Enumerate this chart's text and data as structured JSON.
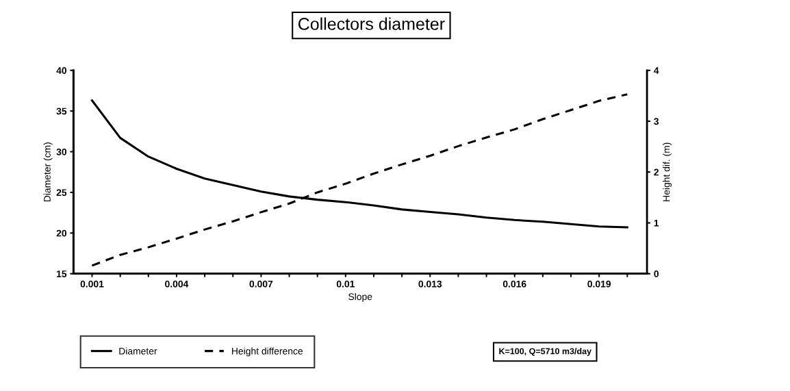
{
  "chart_data": {
    "type": "line",
    "title": "Collectors diameter",
    "xlabel": "Slope",
    "ylabel": "Diameter (cm)",
    "y2label": "Height dif. (m)",
    "x": [
      0.001,
      0.002,
      0.003,
      0.004,
      0.005,
      0.006,
      0.007,
      0.008,
      0.009,
      0.01,
      0.011,
      0.012,
      0.013,
      0.014,
      0.015,
      0.016,
      0.017,
      0.018,
      0.019,
      0.02
    ],
    "series": [
      {
        "name": "Diameter",
        "color": "#000000",
        "line_style": "solid",
        "values": [
          36.3,
          31.7,
          29.4,
          27.9,
          26.7,
          25.9,
          25.1,
          24.5,
          24.1,
          23.8,
          23.4,
          22.9,
          22.6,
          22.3,
          21.9,
          21.6,
          21.4,
          21.1,
          20.8,
          20.7
        ]
      },
      {
        "name": "Height difference",
        "color": "#000000",
        "line_style": "dashed",
        "axis": "y2",
        "values": [
          0.16,
          0.37,
          0.52,
          0.69,
          0.87,
          1.03,
          1.21,
          1.38,
          1.6,
          1.77,
          1.97,
          2.15,
          2.32,
          2.51,
          2.68,
          2.84,
          3.04,
          3.22,
          3.4,
          3.53
        ]
      }
    ],
    "xlim": [
      0.00034,
      0.0207
    ],
    "xticks": [
      0.001,
      {
        "value": 0.002,
        "label": null
      },
      {
        "value": 0.003,
        "label": null
      },
      0.004,
      {
        "value": 0.005,
        "label": null
      },
      {
        "value": 0.006,
        "label": null
      },
      0.007,
      {
        "value": 0.008,
        "label": null
      },
      {
        "value": 0.009,
        "label": null
      },
      {
        "value": 0.01,
        "label": "0.01"
      },
      {
        "value": 0.011,
        "label": null
      },
      {
        "value": 0.012,
        "label": null
      },
      0.013,
      {
        "value": 0.014,
        "label": null
      },
      {
        "value": 0.015,
        "label": null
      },
      0.016,
      {
        "value": 0.017,
        "label": null
      },
      {
        "value": 0.018,
        "label": null
      },
      0.019,
      {
        "value": 0.02,
        "label": null
      }
    ],
    "ylim": [
      15,
      40
    ],
    "yticks": [
      15,
      20,
      25,
      30,
      35,
      40
    ],
    "y2lim": [
      0,
      4
    ],
    "y2ticks": [
      0,
      1,
      2,
      3,
      4
    ],
    "grid": false,
    "marker": "none",
    "legend": "bottom",
    "annotations": [
      "K=100, Q=5710 m3/day"
    ]
  }
}
